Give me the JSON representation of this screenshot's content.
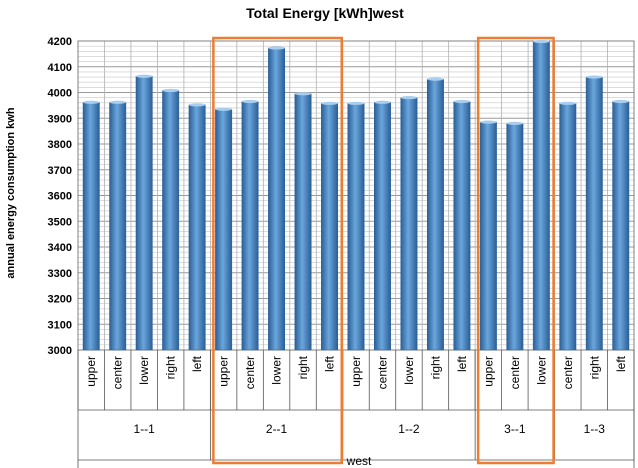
{
  "chart_data": {
    "type": "bar",
    "title": "Total Energy [kWh]west",
    "ylabel": "annual energy consumption kwh",
    "xlabel": "",
    "ylim": [
      3000,
      4200
    ],
    "yticks": [
      3000,
      3100,
      3200,
      3300,
      3400,
      3500,
      3600,
      3700,
      3800,
      3900,
      4000,
      4100,
      4200
    ],
    "grid": true,
    "super_category": "west",
    "groups": [
      {
        "label": "1--1",
        "categories": [
          "upper",
          "center",
          "lower",
          "right",
          "left"
        ],
        "values": [
          3962,
          3962,
          4063,
          4008,
          3952
        ],
        "highlighted": false
      },
      {
        "label": "2--1",
        "categories": [
          "upper",
          "center",
          "lower",
          "right",
          "left"
        ],
        "values": [
          3935,
          3965,
          4173,
          3995,
          3958
        ],
        "highlighted": true
      },
      {
        "label": "1--2",
        "categories": [
          "upper",
          "center",
          "lower",
          "right",
          "left"
        ],
        "values": [
          3958,
          3962,
          3980,
          4052,
          3965
        ],
        "highlighted": false
      },
      {
        "label": "3--1",
        "categories": [
          "upper",
          "center",
          "lower"
        ],
        "values": [
          3885,
          3880,
          4198
        ],
        "highlighted": true
      },
      {
        "label": "1--3",
        "categories": [
          "center",
          "right",
          "left"
        ],
        "values": [
          3958,
          4060,
          3965
        ],
        "highlighted": false
      }
    ],
    "colors": {
      "bar": "#3a7fc4",
      "bar_dark": "#2a5f97",
      "bar_light": "#6aa6dc",
      "highlight": "#ed7d31",
      "grid": "#9a9a9a"
    }
  }
}
